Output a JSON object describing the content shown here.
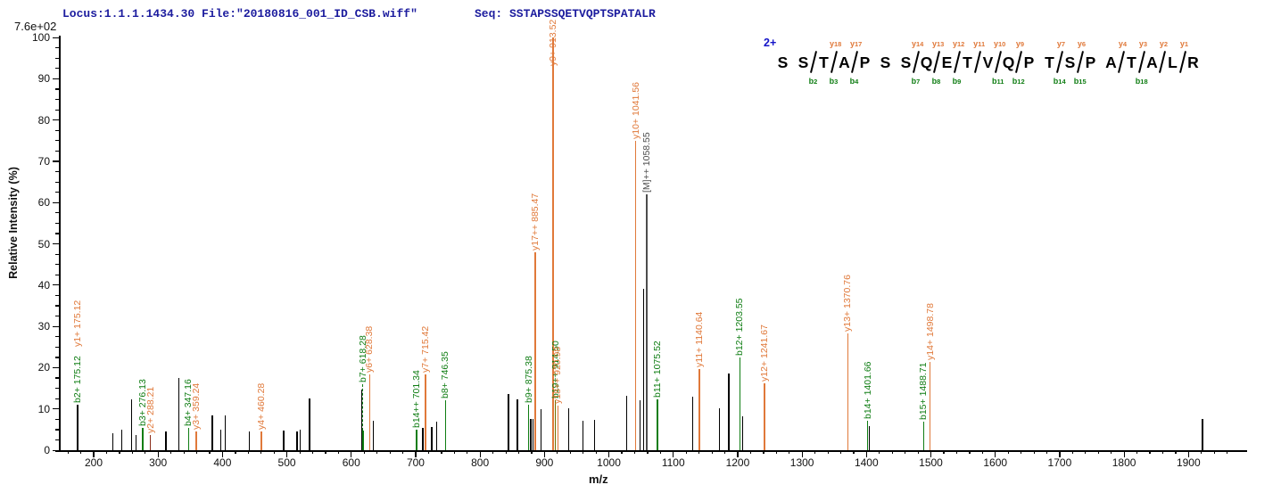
{
  "header": {
    "locus_file": "Locus:1.1.1.1434.30 File:\"20180816_001_ID_CSB.wiff\"",
    "seq": "Seq: SSTAPSSQETVQPTSPATALR"
  },
  "y_axis": {
    "scale_note": "7.6e+02",
    "title": "Relative  Intensity (%)",
    "tick_min": 0,
    "tick_max": 100,
    "tick_step": 10,
    "minor_step": 2.5
  },
  "x_axis": {
    "title": "m/z",
    "tick_min": 200,
    "tick_max": 1900,
    "tick_step": 100,
    "minor_step": 20,
    "domain_min": 146,
    "domain_max": 1991
  },
  "colors": {
    "b_ion": "#0f7d13",
    "y_ion": "#e0793a",
    "precursor": "#4d4d4d",
    "peak": "#000000",
    "overlap": "#6f6f00",
    "dark_y": "#8a2e1a",
    "header_text": "#1c1c9e",
    "charge": "#1414c8"
  },
  "sequence": {
    "charge_label": "2+",
    "residues": [
      "S",
      "S",
      "T",
      "A",
      "P",
      "S",
      "S",
      "Q",
      "E",
      "T",
      "V",
      "Q",
      "P",
      "T",
      "S",
      "P",
      "A",
      "T",
      "A",
      "L",
      "R"
    ],
    "marks": [
      {
        "after": 2,
        "b": "b2"
      },
      {
        "after": 3,
        "y": "y18",
        "b": "b3"
      },
      {
        "after": 4,
        "y": "y17",
        "b": "b4"
      },
      {
        "after": 7,
        "y": "y14",
        "b": "b7"
      },
      {
        "after": 8,
        "y": "y13",
        "b": "b8"
      },
      {
        "after": 9,
        "y": "y12",
        "b": "b9"
      },
      {
        "after": 10,
        "y": "y11"
      },
      {
        "after": 11,
        "y": "y10",
        "b": "b11"
      },
      {
        "after": 12,
        "y": "y9",
        "b": "b12"
      },
      {
        "after": 14,
        "y": "y7",
        "b": "b14"
      },
      {
        "after": 15,
        "y": "y6",
        "b": "b15"
      },
      {
        "after": 17,
        "y": "y4"
      },
      {
        "after": 18,
        "y": "y3",
        "b": "b18"
      },
      {
        "after": 19,
        "y": "y2"
      },
      {
        "after": 20,
        "y": "y1"
      }
    ]
  },
  "chart_data": {
    "type": "bar",
    "chart_kind": "ms2-fragment-spectrum",
    "xlabel": "m/z",
    "ylabel": "Relative  Intensity (%)",
    "x_range": [
      146,
      1991
    ],
    "y_range": [
      0,
      100
    ],
    "base_peak_intensity": "7.6e+02",
    "precursor_label": "[M]++ 1058.55",
    "legend": "green = b ions, orange = y ions, black = unassigned",
    "peaks": [
      {
        "mz": 175.12,
        "h": 11.0,
        "t": "peak",
        "labels": [
          {
            "text": "b2+ 175.12",
            "ion": "b"
          },
          {
            "text": "y1+ 175.12",
            "ion": "y"
          }
        ]
      },
      {
        "mz": 230,
        "h": 4.0,
        "t": "peak"
      },
      {
        "mz": 244,
        "h": 5.0,
        "t": "peak"
      },
      {
        "mz": 259,
        "h": 12.3,
        "t": "peak"
      },
      {
        "mz": 266,
        "h": 3.7,
        "t": "peak"
      },
      {
        "mz": 276.13,
        "h": 5.4,
        "t": "b",
        "labels": [
          {
            "text": "b3+ 276.13",
            "ion": "b"
          }
        ]
      },
      {
        "mz": 288.21,
        "h": 3.7,
        "t": "y",
        "lc": "#8a2e1a",
        "labels": [
          {
            "text": "y2+ 288.21",
            "ion": "y"
          }
        ]
      },
      {
        "mz": 312,
        "h": 4.5,
        "t": "peak"
      },
      {
        "mz": 332,
        "h": 17.4,
        "t": "peak"
      },
      {
        "mz": 347.16,
        "h": 5.4,
        "t": "b",
        "labels": [
          {
            "text": "b4+ 347.16",
            "ion": "b"
          }
        ]
      },
      {
        "mz": 359.24,
        "h": 4.5,
        "t": "y",
        "labels": [
          {
            "text": "y3+ 359.24",
            "ion": "y"
          }
        ]
      },
      {
        "mz": 384,
        "h": 8.5,
        "t": "peak"
      },
      {
        "mz": 397,
        "h": 5.0,
        "t": "peak"
      },
      {
        "mz": 404,
        "h": 8.5,
        "t": "peak"
      },
      {
        "mz": 442,
        "h": 4.5,
        "t": "peak"
      },
      {
        "mz": 460.28,
        "h": 4.5,
        "t": "y",
        "labels": [
          {
            "text": "y4+ 460.28",
            "ion": "y"
          }
        ]
      },
      {
        "mz": 495,
        "h": 4.7,
        "t": "peak"
      },
      {
        "mz": 516,
        "h": 4.5,
        "t": "peak"
      },
      {
        "mz": 521,
        "h": 5.0,
        "t": "peak"
      },
      {
        "mz": 535,
        "h": 12.5,
        "t": "peak"
      },
      {
        "mz": 616,
        "h": 14.7,
        "t": "peak"
      },
      {
        "mz": 618.28,
        "h": 4.7,
        "t": "b",
        "leader_to": 16,
        "labels": [
          {
            "text": "b7+ 618.28",
            "ion": "b"
          }
        ]
      },
      {
        "mz": 628.38,
        "h": 18.4,
        "t": "y",
        "labels": [
          {
            "text": "y6+ 628.38",
            "ion": "y"
          }
        ]
      },
      {
        "mz": 634,
        "h": 7.1,
        "t": "peak"
      },
      {
        "mz": 701.34,
        "h": 5.0,
        "t": "b",
        "labels": [
          {
            "text": "b14++ 701.34",
            "ion": "b"
          }
        ]
      },
      {
        "mz": 711,
        "h": 5.4,
        "t": "peak"
      },
      {
        "mz": 715.42,
        "h": 18.3,
        "t": "y",
        "labels": [
          {
            "text": "y7+ 715.42",
            "ion": "y"
          }
        ]
      },
      {
        "mz": 725,
        "h": 5.6,
        "t": "peak"
      },
      {
        "mz": 733,
        "h": 6.9,
        "t": "peak"
      },
      {
        "mz": 746.35,
        "h": 12.2,
        "t": "b",
        "labels": [
          {
            "text": "b8+ 746.35",
            "ion": "b"
          }
        ]
      },
      {
        "mz": 844,
        "h": 13.6,
        "t": "peak"
      },
      {
        "mz": 858,
        "h": 12.3,
        "t": "peak"
      },
      {
        "mz": 875.38,
        "h": 11.0,
        "t": "b",
        "labels": [
          {
            "text": "b9+ 875.38",
            "ion": "b"
          }
        ]
      },
      {
        "mz": 879,
        "h": 7.5,
        "t": "peak"
      },
      {
        "mz": 882,
        "h": 7.5,
        "t": "peak"
      },
      {
        "mz": 885.47,
        "h": 48.0,
        "t": "y",
        "labels": [
          {
            "text": "y17++ 885.47",
            "ion": "y"
          }
        ]
      },
      {
        "mz": 895,
        "h": 10.0,
        "t": "peak"
      },
      {
        "mz": 913.52,
        "h": 100.0,
        "t": "y",
        "labels": [
          {
            "text": "y9+ 913.52",
            "ion": "y"
          }
        ]
      },
      {
        "mz": 917,
        "h": 12.0,
        "t": "ov",
        "labels": [
          {
            "text": "b19++ 914.50",
            "ion": "b"
          }
        ]
      },
      {
        "mz": 920.98,
        "h": 10.9,
        "t": "y",
        "labels": [
          {
            "text": "y18++ 920.98",
            "ion": "y"
          }
        ]
      },
      {
        "mz": 938,
        "h": 10.2,
        "t": "peak"
      },
      {
        "mz": 960,
        "h": 7.2,
        "t": "peak"
      },
      {
        "mz": 978,
        "h": 7.4,
        "t": "peak"
      },
      {
        "mz": 1028,
        "h": 13.1,
        "t": "peak"
      },
      {
        "mz": 1041.56,
        "h": 75.0,
        "t": "y",
        "labels": [
          {
            "text": "y10+ 1041.56",
            "ion": "y"
          }
        ]
      },
      {
        "mz": 1048,
        "h": 12.2,
        "t": "peak"
      },
      {
        "mz": 1054,
        "h": 39.2,
        "t": "peak"
      },
      {
        "mz": 1058.55,
        "h": 62.0,
        "t": "M",
        "labels": [
          {
            "text": "[M]++ 1058.55",
            "ion": "M"
          }
        ]
      },
      {
        "mz": 1075.52,
        "h": 12.4,
        "t": "b",
        "labels": [
          {
            "text": "b11+ 1075.52",
            "ion": "b"
          }
        ]
      },
      {
        "mz": 1130,
        "h": 13.0,
        "t": "peak"
      },
      {
        "mz": 1140.64,
        "h": 19.6,
        "t": "y",
        "labels": [
          {
            "text": "y11+ 1140.64",
            "ion": "y"
          }
        ]
      },
      {
        "mz": 1172,
        "h": 10.2,
        "t": "peak"
      },
      {
        "mz": 1186,
        "h": 18.5,
        "t": "peak"
      },
      {
        "mz": 1203.55,
        "h": 22.4,
        "t": "b",
        "labels": [
          {
            "text": "b12+ 1203.55",
            "ion": "b"
          }
        ]
      },
      {
        "mz": 1208,
        "h": 8.3,
        "t": "peak"
      },
      {
        "mz": 1241.67,
        "h": 16.3,
        "t": "y",
        "labels": [
          {
            "text": "y12+ 1241.67",
            "ion": "y"
          }
        ]
      },
      {
        "mz": 1370.76,
        "h": 28.3,
        "t": "y",
        "labels": [
          {
            "text": "y13+ 1370.76",
            "ion": "y"
          }
        ]
      },
      {
        "mz": 1401.66,
        "h": 7.2,
        "t": "b",
        "labels": [
          {
            "text": "b14+ 1401.66",
            "ion": "b"
          }
        ]
      },
      {
        "mz": 1404,
        "h": 5.9,
        "t": "peak"
      },
      {
        "mz": 1488.71,
        "h": 7.0,
        "t": "b",
        "labels": [
          {
            "text": "b15+ 1488.71",
            "ion": "b"
          }
        ]
      },
      {
        "mz": 1498.78,
        "h": 21.3,
        "t": "y",
        "labels": [
          {
            "text": "y14+ 1498.78",
            "ion": "y"
          }
        ]
      },
      {
        "mz": 1922,
        "h": 7.6,
        "t": "peak"
      }
    ]
  }
}
